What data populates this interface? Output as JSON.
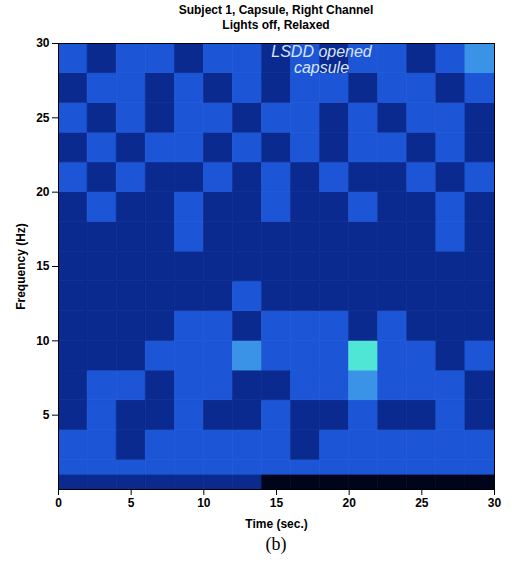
{
  "chart_data": {
    "type": "heatmap",
    "title": "Subject 1, Capsule, Right Channel",
    "subtitle": "Lights off, Relaxed",
    "annotation": "LSDD opened\ncapsule",
    "caption": "(b)",
    "x_label": "Time (sec.)",
    "y_label": "Frequency (Hz)",
    "xlim": [
      0,
      30
    ],
    "ylim": [
      0,
      30
    ],
    "xticks": [
      0,
      5,
      10,
      15,
      20,
      25,
      30
    ],
    "yticks": [
      5,
      10,
      15,
      20,
      25,
      30
    ],
    "time_edges": [
      0,
      2,
      4,
      6,
      8,
      10,
      12,
      14,
      16,
      18,
      20,
      22,
      24,
      26,
      28,
      30
    ],
    "frequency_edges": [
      0,
      1,
      2,
      4,
      6,
      8,
      10,
      12,
      14,
      16,
      18,
      20,
      22,
      24,
      26,
      28,
      30
    ],
    "zlim": [
      -1,
      3
    ],
    "cells": [
      [
        0,
        0,
        0,
        0,
        0,
        0,
        0,
        -1,
        -1,
        -1,
        -1,
        -1,
        -1,
        -1,
        -1
      ],
      [
        1,
        1,
        1,
        1,
        1,
        1,
        1,
        1,
        1,
        1,
        1,
        1,
        1,
        1,
        1
      ],
      [
        1,
        1,
        0,
        1,
        1,
        1,
        1,
        1,
        0,
        1,
        1,
        1,
        1,
        1,
        1
      ],
      [
        0,
        1,
        0,
        0,
        1,
        0,
        0,
        1,
        0,
        0,
        1,
        0,
        0,
        1,
        0
      ],
      [
        0,
        1,
        1,
        0,
        1,
        1,
        0,
        0,
        1,
        1,
        2,
        1,
        1,
        1,
        0
      ],
      [
        0,
        0,
        0,
        1,
        1,
        1,
        2,
        1,
        1,
        1,
        3,
        1,
        1,
        0,
        1
      ],
      [
        0,
        0,
        0,
        0,
        1,
        1,
        0,
        1,
        1,
        1,
        0,
        1,
        0,
        0,
        0
      ],
      [
        0,
        0,
        0,
        0,
        0,
        0,
        1,
        0,
        0,
        0,
        0,
        0,
        0,
        0,
        0
      ],
      [
        0,
        0,
        0,
        0,
        0,
        0,
        0,
        0,
        0,
        0,
        0,
        0,
        0,
        0,
        0
      ],
      [
        0,
        0,
        0,
        0,
        1,
        0,
        0,
        0,
        0,
        0,
        0,
        0,
        0,
        1,
        0
      ],
      [
        0,
        1,
        0,
        0,
        1,
        0,
        0,
        1,
        0,
        0,
        1,
        0,
        0,
        1,
        0
      ],
      [
        1,
        0,
        1,
        0,
        0,
        1,
        0,
        1,
        0,
        1,
        0,
        0,
        1,
        0,
        1
      ],
      [
        0,
        1,
        0,
        1,
        1,
        0,
        1,
        0,
        1,
        0,
        1,
        1,
        0,
        1,
        0
      ],
      [
        1,
        0,
        1,
        0,
        1,
        1,
        0,
        1,
        1,
        0,
        1,
        0,
        1,
        1,
        0
      ],
      [
        0,
        1,
        1,
        0,
        1,
        0,
        1,
        0,
        1,
        1,
        0,
        1,
        1,
        0,
        1
      ],
      [
        1,
        0,
        1,
        1,
        0,
        1,
        1,
        0,
        1,
        0,
        1,
        1,
        0,
        1,
        2
      ]
    ]
  }
}
